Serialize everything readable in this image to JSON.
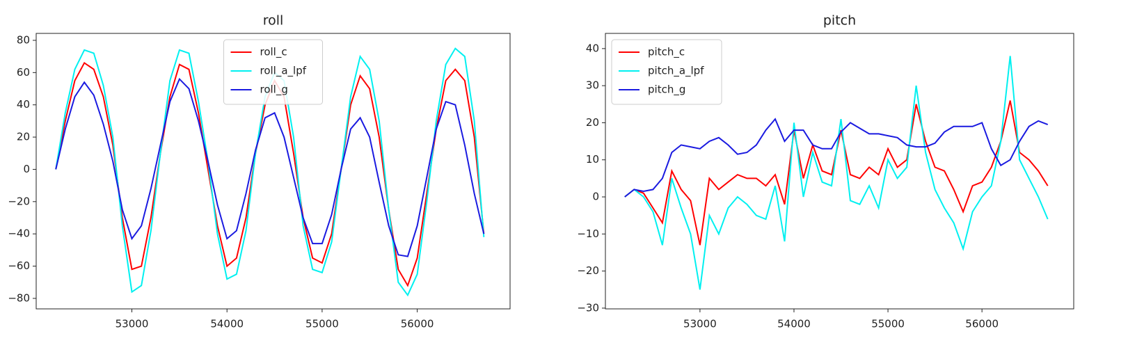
{
  "chart_data": [
    {
      "type": "line",
      "title": "roll",
      "x": [
        52200,
        52300,
        52400,
        52500,
        52600,
        52700,
        52800,
        52900,
        53000,
        53100,
        53200,
        53300,
        53400,
        53500,
        53600,
        53700,
        53800,
        53900,
        54000,
        54100,
        54200,
        54300,
        54400,
        54500,
        54600,
        54700,
        54800,
        54900,
        55000,
        55100,
        55200,
        55300,
        55400,
        55500,
        55600,
        55700,
        55800,
        55900,
        56000,
        56100,
        56200,
        56300,
        56400,
        56500,
        56600,
        56700
      ],
      "series": [
        {
          "name": "roll_c",
          "color": "#ff0000",
          "values": [
            0,
            30,
            55,
            66,
            62,
            45,
            15,
            -30,
            -62,
            -60,
            -30,
            10,
            45,
            65,
            62,
            35,
            0,
            -35,
            -60,
            -55,
            -30,
            10,
            40,
            55,
            45,
            10,
            -30,
            -55,
            -58,
            -40,
            0,
            40,
            58,
            50,
            20,
            -25,
            -62,
            -72,
            -55,
            -15,
            25,
            55,
            62,
            55,
            20,
            -40
          ]
        },
        {
          "name": "roll_a_lpf",
          "color": "#00f0f0",
          "values": [
            0,
            35,
            62,
            74,
            72,
            52,
            20,
            -35,
            -76,
            -72,
            -38,
            10,
            55,
            74,
            72,
            42,
            5,
            -40,
            -68,
            -65,
            -38,
            10,
            45,
            60,
            55,
            20,
            -35,
            -62,
            -64,
            -45,
            0,
            45,
            70,
            62,
            30,
            -25,
            -70,
            -78,
            -65,
            -20,
            30,
            65,
            75,
            70,
            30,
            -42
          ]
        },
        {
          "name": "roll_g",
          "color": "#1a1ae0",
          "values": [
            0,
            25,
            45,
            54,
            46,
            28,
            5,
            -25,
            -43,
            -35,
            -12,
            15,
            42,
            56,
            50,
            30,
            5,
            -22,
            -43,
            -38,
            -15,
            12,
            32,
            35,
            20,
            -5,
            -30,
            -46,
            -46,
            -28,
            0,
            25,
            32,
            20,
            -8,
            -35,
            -53,
            -54,
            -35,
            -5,
            25,
            42,
            40,
            15,
            -15,
            -40
          ]
        }
      ],
      "xlim": [
        51994,
        56976
      ],
      "xticks": [
        53000,
        54000,
        55000,
        56000
      ],
      "ylim": [
        -86.5,
        84.3
      ],
      "yticks": [
        {
          "value": -80,
          "label": "−80"
        },
        {
          "value": -60,
          "label": "−60"
        },
        {
          "value": -40,
          "label": "−40"
        },
        {
          "value": -20,
          "label": "−20"
        },
        0,
        20,
        40,
        60,
        80
      ],
      "legend": "upper center"
    },
    {
      "type": "line",
      "title": "pitch",
      "x": [
        52200,
        52300,
        52400,
        52500,
        52600,
        52700,
        52800,
        52900,
        53000,
        53100,
        53200,
        53300,
        53400,
        53500,
        53600,
        53700,
        53800,
        53900,
        54000,
        54100,
        54200,
        54300,
        54400,
        54500,
        54600,
        54700,
        54800,
        54900,
        55000,
        55100,
        55200,
        55300,
        55400,
        55500,
        55600,
        55700,
        55800,
        55900,
        56000,
        56100,
        56200,
        56300,
        56400,
        56500,
        56600,
        56700
      ],
      "series": [
        {
          "name": "pitch_c",
          "color": "#ff0000",
          "values": [
            0,
            2,
            1,
            -3,
            -7,
            7,
            2,
            -1,
            -13,
            5,
            2,
            4,
            6,
            5,
            5,
            3,
            6,
            -2,
            18,
            5,
            14,
            7,
            6,
            18,
            6,
            5,
            8,
            6,
            13,
            8,
            10,
            25,
            15,
            8,
            7,
            2,
            -4,
            3,
            4,
            8,
            15,
            26,
            12,
            10,
            7,
            3
          ]
        },
        {
          "name": "pitch_a_lpf",
          "color": "#00f0f0",
          "values": [
            0,
            2,
            0,
            -4,
            -13,
            5,
            -3,
            -10,
            -25,
            -5,
            -10,
            -3,
            0,
            -2,
            -5,
            -6,
            3,
            -12,
            20,
            0,
            12,
            4,
            3,
            21,
            -1,
            -2,
            3,
            -3,
            10,
            5,
            8,
            30,
            12,
            2,
            -3,
            -7,
            -14,
            -4,
            0,
            3,
            15,
            38,
            10,
            5,
            0,
            -6
          ]
        },
        {
          "name": "pitch_g",
          "color": "#1a1ae0",
          "values": [
            0,
            2,
            1.5,
            2,
            5,
            12,
            14,
            13.5,
            13,
            15,
            16,
            14,
            11.5,
            12,
            14,
            18,
            21,
            15,
            18,
            18,
            14,
            13,
            13,
            17.5,
            20,
            18.5,
            17,
            17,
            16.5,
            16,
            14,
            13.5,
            13.5,
            14.5,
            17.5,
            19,
            19,
            19,
            20,
            13,
            8.5,
            10,
            15,
            19,
            20.5,
            19.5
          ]
        }
      ],
      "xlim": [
        51994,
        56976
      ],
      "xticks": [
        53000,
        54000,
        55000,
        56000
      ],
      "ylim": [
        -30.2,
        44.1
      ],
      "yticks": [
        {
          "value": -30,
          "label": "−30"
        },
        {
          "value": -20,
          "label": "−20"
        },
        {
          "value": -10,
          "label": "−10"
        },
        0,
        10,
        20,
        30,
        40
      ],
      "legend": "upper left"
    }
  ]
}
